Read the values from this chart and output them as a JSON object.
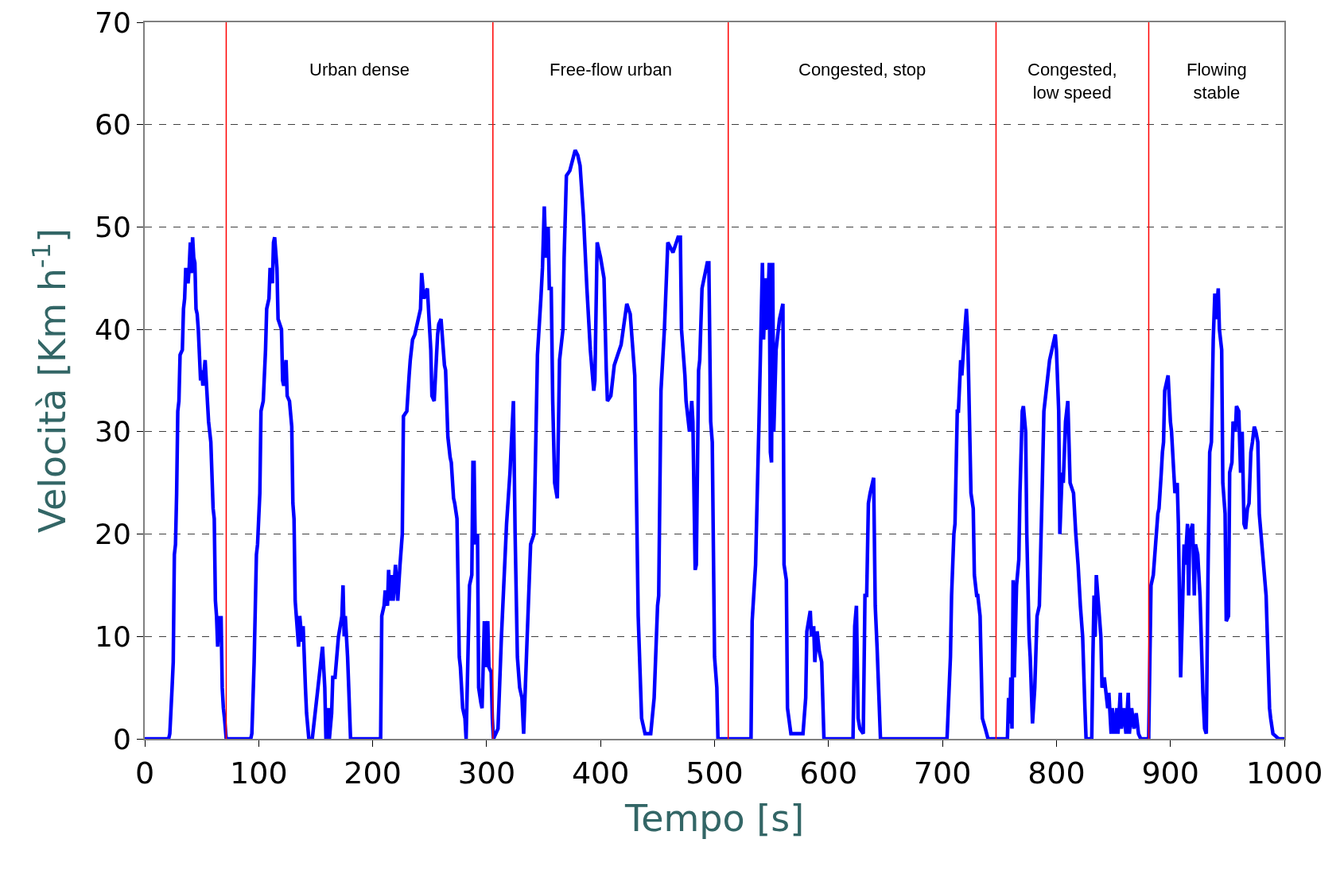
{
  "chart_data": {
    "type": "line",
    "xlabel": "Tempo [s]",
    "ylabel": "Velocità [Km h$^{-1}$]",
    "xlim": [
      0,
      1000
    ],
    "xticks": [
      0,
      100,
      200,
      300,
      400,
      500,
      600,
      700,
      800,
      900,
      1000
    ],
    "ylim": [
      0,
      70
    ],
    "yticks": [
      0,
      10,
      20,
      30,
      40,
      50,
      60,
      70
    ],
    "grid": "y",
    "legend": false,
    "marker": "none",
    "line_style": "solid",
    "series": [
      {
        "color": "#0000ff",
        "x": [
          0,
          21,
          22,
          24,
          25,
          26,
          27,
          28,
          29,
          30,
          31,
          33,
          34,
          35,
          36,
          38,
          39,
          40,
          41,
          42,
          43,
          44,
          45,
          46,
          47,
          49,
          50,
          51,
          53,
          54,
          56,
          58,
          60,
          61,
          62,
          63,
          64,
          65,
          66,
          67,
          68,
          69,
          70,
          71.5,
          93,
          94,
          96,
          98,
          99,
          101,
          102,
          104,
          106,
          107,
          109,
          110,
          112,
          113,
          114,
          116,
          117,
          120,
          121,
          122,
          124,
          125,
          127,
          129,
          130,
          131,
          132,
          133,
          135,
          136,
          138,
          139,
          141,
          142,
          144,
          147,
          150,
          152,
          155,
          156,
          158,
          159,
          161,
          162,
          164,
          165,
          167,
          170,
          173,
          174,
          175,
          176,
          178,
          179,
          180.6,
          207,
          208,
          210,
          211,
          213,
          214,
          215,
          217,
          218,
          220,
          222,
          224,
          226,
          227,
          230,
          232,
          233,
          235,
          237,
          239,
          242,
          243,
          245,
          248,
          250,
          251,
          252,
          254,
          257,
          258,
          260,
          263,
          264,
          266,
          268,
          269,
          271,
          272,
          274,
          276,
          277,
          278,
          279,
          281,
          282,
          284,
          285,
          287,
          288,
          289,
          290,
          292,
          293,
          295,
          296,
          298,
          299,
          301,
          302,
          304,
          305,
          306,
          310,
          313,
          317.5,
          320.5,
          323.5,
          325,
          327,
          329,
          331,
          332.5,
          335.6,
          338.6,
          341.6,
          344.6,
          347.6,
          349,
          350.6,
          352,
          354,
          355,
          356.7,
          358,
          359.7,
          362,
          364,
          367,
          368,
          370,
          373,
          377.7,
          380,
          382,
          385,
          388,
          391,
          394,
          395,
          397,
          400,
          403,
          405,
          406,
          409,
          412,
          415,
          418,
          423,
          426,
          430,
          433,
          436,
          439,
          444,
          447,
          450,
          451,
          453,
          456,
          459,
          463.5,
          468,
          470,
          471,
          474,
          475,
          477,
          478,
          480,
          481,
          483,
          484,
          486,
          487,
          489,
          493.6,
          495,
          496.6,
          498,
          500,
          502,
          503,
          532,
          533,
          536,
          539,
          542,
          543,
          545,
          546,
          548,
          549,
          550,
          551,
          552,
          554,
          557,
          560,
          561,
          563,
          564,
          567,
          577.6,
          580,
          581,
          584,
          585,
          587,
          588,
          590,
          592,
          594,
          596,
          621.5,
          623,
          624.5,
          626,
          627.5,
          630.5,
          632,
          633.5,
          635,
          636.5,
          639.6,
          641,
          642.6,
          645.6,
          704,
          707,
          708,
          710,
          711,
          713,
          714,
          716,
          717,
          719,
          721,
          722,
          723,
          725,
          727,
          728,
          730,
          731,
          733,
          734,
          735,
          737.6,
          740,
          747,
          757,
          758,
          759,
          760,
          761,
          762,
          763,
          765,
          767,
          768,
          770,
          771,
          773,
          774,
          776,
          777,
          779,
          781,
          783,
          785,
          787,
          789,
          792,
          794,
          796,
          799,
          800,
          802,
          803,
          805,
          806,
          808,
          810,
          812,
          815,
          817,
          819,
          821,
          823,
          825,
          826,
          831,
          832,
          833,
          834,
          835,
          837,
          839,
          840,
          842,
          843,
          845,
          846,
          848,
          849,
          851,
          853,
          854,
          856,
          857,
          859,
          861,
          863,
          864,
          866,
          868,
          870,
          872,
          874,
          881,
          881,
          883,
          885,
          887,
          889,
          890,
          892,
          893,
          894,
          895,
          898,
          900,
          901,
          904,
          906,
          907,
          909,
          910,
          912,
          913,
          915,
          916,
          917,
          919.5,
          921,
          922,
          924,
          926,
          928.5,
          930,
          931.5,
          933,
          934.5,
          936,
          937.6,
          939,
          940,
          942,
          943,
          945,
          946,
          948,
          949,
          951,
          952,
          954,
          955,
          957,
          958,
          960,
          961.6,
          963,
          964.6,
          966,
          967.6,
          969,
          970.6,
          972,
          973.6,
          975,
          976.7,
          978,
          984,
          987,
          988,
          990,
          995,
          1000
        ],
        "values": [
          0,
          0,
          0.5,
          5,
          7.5,
          18,
          19,
          24,
          32,
          33,
          37.5,
          38,
          42,
          43,
          46,
          44.5,
          46,
          48.5,
          45.5,
          49,
          47,
          46.5,
          42,
          41.5,
          40,
          35,
          36,
          34.5,
          37,
          35,
          31,
          29,
          22.5,
          21.5,
          13.5,
          12,
          9,
          12,
          9.5,
          12,
          5,
          3,
          2,
          0,
          0,
          0.5,
          7.5,
          18,
          19,
          24,
          32,
          33,
          38,
          42,
          43,
          46,
          44.5,
          48.5,
          49,
          46,
          41,
          40,
          35,
          34.5,
          37,
          33.5,
          33,
          30.5,
          23,
          21.5,
          13.5,
          12,
          9,
          12,
          9.5,
          11,
          5,
          2.5,
          0,
          0,
          3,
          5,
          8,
          9,
          5,
          0,
          3,
          0,
          2.5,
          6,
          6,
          10,
          12,
          15,
          10,
          12,
          8,
          5,
          0,
          0,
          12,
          13,
          14.5,
          13,
          16.5,
          13.5,
          16,
          13.5,
          17,
          13.5,
          17,
          20,
          31.5,
          32,
          35.5,
          37,
          39,
          39.5,
          40.5,
          42,
          45.5,
          43,
          44,
          40,
          38,
          33.5,
          33,
          39.5,
          40.5,
          41,
          36.5,
          36,
          29.5,
          27.5,
          27,
          23.5,
          23,
          21.5,
          8,
          7,
          5,
          3,
          2,
          0,
          10,
          15,
          16,
          27,
          27,
          19,
          20,
          5,
          3.5,
          3,
          11.5,
          7,
          11.5,
          7,
          6.5,
          2,
          0,
          1,
          10,
          21,
          26,
          33,
          20,
          8,
          5,
          4,
          0.5,
          10,
          19,
          20,
          37.5,
          43,
          46,
          52,
          47,
          50,
          44,
          44,
          33,
          25,
          23.5,
          37,
          40,
          47,
          55,
          55.5,
          57.5,
          57,
          56,
          51,
          44,
          38,
          34,
          35,
          48.5,
          47,
          45,
          36,
          33,
          33.5,
          36.5,
          37.5,
          38.5,
          42.5,
          41.5,
          35.5,
          12,
          2,
          0.5,
          0.5,
          4,
          13,
          14,
          34,
          40,
          48.5,
          47.5,
          49,
          49,
          40,
          35.5,
          33,
          31,
          30,
          33,
          31,
          16.5,
          17,
          36,
          37,
          44,
          46.5,
          46.5,
          31,
          29,
          8,
          5,
          0,
          0,
          11.5,
          17,
          31,
          46.5,
          39,
          45,
          40,
          46.5,
          28,
          27,
          46.5,
          30,
          38,
          41,
          42.5,
          17,
          15.5,
          3,
          0.5,
          0.5,
          4,
          10.5,
          12.5,
          10,
          11,
          7.5,
          10.5,
          8.5,
          7.5,
          0,
          0,
          11,
          13,
          2,
          1,
          0.5,
          14,
          14,
          23,
          24,
          25.5,
          13,
          9,
          0,
          0,
          8,
          14,
          20,
          21,
          32,
          32,
          37,
          35.5,
          39,
          42,
          40,
          35,
          24,
          22.5,
          16,
          14,
          14,
          12,
          7,
          2,
          1,
          0,
          0,
          0,
          4,
          1.5,
          6,
          1,
          15.5,
          6,
          15,
          17.5,
          24,
          32,
          32.5,
          30,
          20,
          10,
          8,
          1.5,
          5,
          12,
          13,
          22,
          32,
          35,
          37,
          38,
          39.5,
          38,
          32,
          20,
          26,
          25,
          31,
          33,
          25,
          24,
          20,
          17,
          13,
          10,
          3,
          0,
          0,
          8,
          14,
          10,
          16,
          13,
          10,
          5,
          6,
          5,
          3,
          4.5,
          0.5,
          3,
          0.5,
          3,
          0.5,
          4.5,
          1,
          3,
          0.5,
          4.5,
          0.5,
          3,
          1,
          2.5,
          0.5,
          0,
          0,
          0.5,
          15,
          16,
          19,
          22,
          22.5,
          26,
          28,
          29,
          34,
          35.5,
          31,
          30,
          24,
          25,
          21,
          6,
          10,
          19,
          17,
          21,
          14,
          20,
          21,
          14,
          19,
          18,
          14,
          4.5,
          1,
          0.5,
          16,
          28,
          29,
          39,
          43.5,
          41,
          44,
          40,
          38,
          25,
          22,
          11.5,
          12,
          26,
          27,
          31,
          30,
          32.5,
          32,
          26,
          30,
          21,
          20.5,
          22.5,
          23,
          28,
          29,
          30.5,
          30,
          29,
          22,
          14,
          3,
          2,
          0.5,
          0,
          0
        ]
      }
    ],
    "ref_lines": [
      {
        "axis": "x",
        "value": 71.5,
        "color": "#ff0000"
      },
      {
        "axis": "x",
        "value": 305.5,
        "color": "#ff0000"
      },
      {
        "axis": "x",
        "value": 512,
        "color": "#ff0000"
      },
      {
        "axis": "x",
        "value": 747,
        "color": "#ff0000"
      },
      {
        "axis": "x",
        "value": 881,
        "color": "#ff0000"
      }
    ],
    "annotations": [
      "Urban dense",
      "Free-flow urban",
      "Congested, stop",
      "Congested,\nlow speed",
      "Flowing\nstable"
    ]
  }
}
